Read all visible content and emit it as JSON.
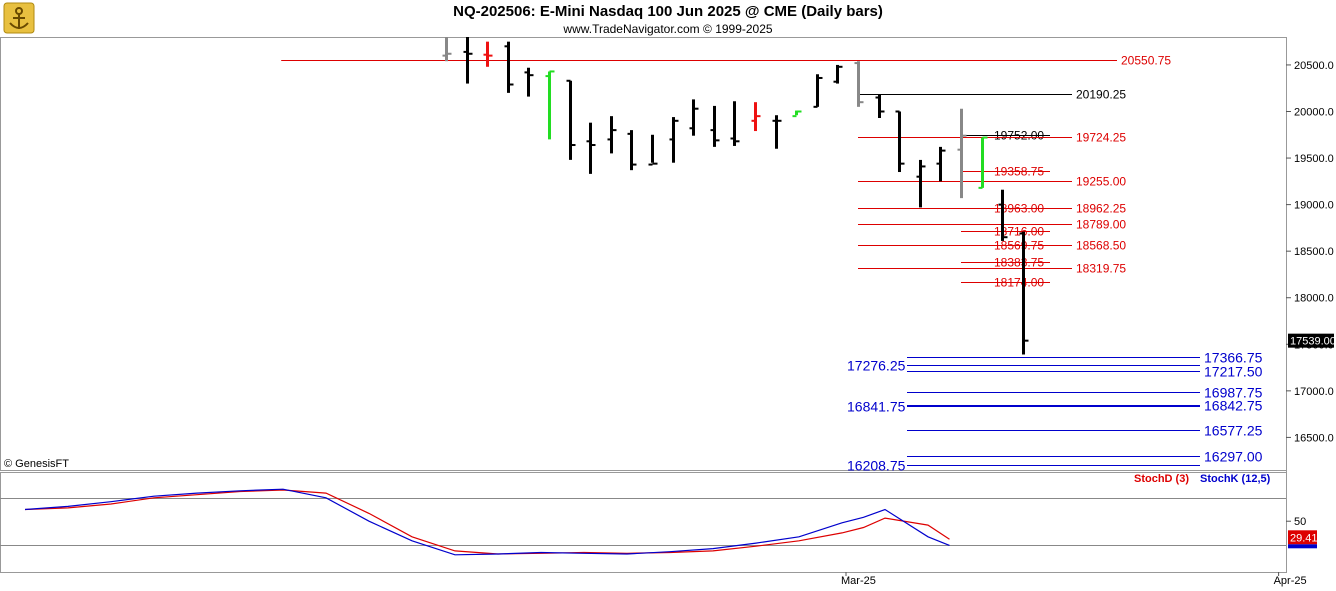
{
  "header": {
    "title": "NQ-202506:  E-Mini Nasdaq 100 Jun 2025 @ CME  (Daily bars)",
    "subtitle": "www.TradeNavigator.com © 1999-2025",
    "watermark": "© GenesisFT"
  },
  "colors": {
    "bar": "#000000",
    "up_bar": "#22dd22",
    "down_bar": "#ee1111",
    "gray_bar": "#888888",
    "resistance": "#dd0000",
    "support": "#0000cc",
    "stoch_d": "#dd0000",
    "stoch_k": "#0000cc"
  },
  "chart_data": [
    {
      "type": "ohlc",
      "title": "NQ-202506:  E-Mini Nasdaq 100 Jun 2025 @ CME  (Daily bars)",
      "ylim": [
        16150,
        20800
      ],
      "y_ticks": [
        "20500.0",
        "20000.0",
        "19500.0",
        "19000.0",
        "18500.0",
        "18000.0",
        "17500.0",
        "17000.0",
        "16500.0"
      ],
      "x_tick_labels": [
        {
          "label": "Mar-25",
          "bar_index": 20
        },
        {
          "label": "Apr-25",
          "bar_index": 41
        }
      ],
      "last_price": "17539.00",
      "bars": [
        {
          "o": 20600,
          "h": 20800,
          "l": 20540,
          "c": 20620,
          "color": "gray"
        },
        {
          "o": 20640,
          "h": 20800,
          "l": 20300,
          "c": 20620,
          "color": "black"
        },
        {
          "o": 20610,
          "h": 20750,
          "l": 20480,
          "c": 20600,
          "color": "red"
        },
        {
          "o": 20700,
          "h": 20750,
          "l": 20200,
          "c": 20290,
          "color": "black"
        },
        {
          "o": 20420,
          "h": 20470,
          "l": 20160,
          "c": 20390,
          "color": "black"
        },
        {
          "o": 20380,
          "h": 20430,
          "l": 19700,
          "c": 20430,
          "color": "green"
        },
        {
          "o": 20330,
          "h": 20330,
          "l": 19480,
          "c": 19640,
          "color": "black"
        },
        {
          "o": 19680,
          "h": 19880,
          "l": 19330,
          "c": 19640,
          "color": "black"
        },
        {
          "o": 19700,
          "h": 19950,
          "l": 19550,
          "c": 19800,
          "color": "black"
        },
        {
          "o": 19760,
          "h": 19800,
          "l": 19370,
          "c": 19430,
          "color": "black"
        },
        {
          "o": 19430,
          "h": 19750,
          "l": 19450,
          "c": 19440,
          "color": "black"
        },
        {
          "o": 19700,
          "h": 19940,
          "l": 19450,
          "c": 19900,
          "color": "black"
        },
        {
          "o": 19820,
          "h": 20130,
          "l": 19740,
          "c": 20030,
          "color": "black"
        },
        {
          "o": 19800,
          "h": 20060,
          "l": 19620,
          "c": 19690,
          "color": "black"
        },
        {
          "o": 19710,
          "h": 20110,
          "l": 19630,
          "c": 19680,
          "color": "black"
        },
        {
          "o": 19900,
          "h": 20100,
          "l": 19790,
          "c": 19950,
          "color": "red"
        },
        {
          "o": 19900,
          "h": 19960,
          "l": 19600,
          "c": 19900,
          "color": "black"
        },
        {
          "o": 19950,
          "h": 20010,
          "l": 19960,
          "c": 20000,
          "color": "green"
        },
        {
          "o": 20050,
          "h": 20400,
          "l": 20050,
          "c": 20360,
          "color": "black"
        },
        {
          "o": 20320,
          "h": 20500,
          "l": 20300,
          "c": 20480,
          "color": "black"
        },
        {
          "o": 20520,
          "h": 20540,
          "l": 20050,
          "c": 20100,
          "color": "gray"
        },
        {
          "o": 20150,
          "h": 20180,
          "l": 19930,
          "c": 20000,
          "color": "black"
        },
        {
          "o": 20000,
          "h": 20000,
          "l": 19350,
          "c": 19440,
          "color": "black"
        },
        {
          "o": 19300,
          "h": 19480,
          "l": 18970,
          "c": 19410,
          "color": "black"
        },
        {
          "o": 19440,
          "h": 19620,
          "l": 19250,
          "c": 19580,
          "color": "black"
        },
        {
          "o": 19590,
          "h": 20030,
          "l": 19070,
          "c": 19740,
          "color": "gray"
        },
        {
          "o": 19180,
          "h": 19720,
          "l": 19180,
          "c": 19720,
          "color": "green"
        },
        {
          "o": 19000,
          "h": 19160,
          "l": 18610,
          "c": 18650,
          "color": "black"
        },
        {
          "o": 18690,
          "h": 18710,
          "l": 17390,
          "c": 17539,
          "color": "black"
        }
      ],
      "resistance_levels": [
        {
          "price": 20550.75,
          "label": "20550.75",
          "color": "red",
          "label_side": "right",
          "x_start_bar": -8
        },
        {
          "price": 20190.25,
          "label": "20190.25",
          "color": "black",
          "label_side": "right",
          "x_start_bar": 20
        },
        {
          "price": 19752.0,
          "label": "19752.00",
          "color": "black",
          "label_side": "left",
          "x_start_bar": 25
        },
        {
          "price": 19724.25,
          "label": "19724.25",
          "color": "red",
          "label_side": "right",
          "x_start_bar": 20
        },
        {
          "price": 19358.75,
          "label": "19358.75",
          "color": "red",
          "label_side": "left",
          "x_start_bar": 25
        },
        {
          "price": 19255.0,
          "label": "19255.00",
          "color": "red",
          "label_side": "right",
          "x_start_bar": 20
        },
        {
          "price": 18963.0,
          "label": "18963.00",
          "color": "red",
          "label_side": "left",
          "x_start_bar": 25
        },
        {
          "price": 18962.25,
          "label": "18962.25",
          "color": "red",
          "label_side": "right",
          "x_start_bar": 20
        },
        {
          "price": 18789.0,
          "label": "18789.00",
          "color": "red",
          "label_side": "right",
          "x_start_bar": 20
        },
        {
          "price": 18716.0,
          "label": "18716.00",
          "color": "red",
          "label_side": "left",
          "x_start_bar": 25
        },
        {
          "price": 18569.75,
          "label": "18569.75",
          "color": "red",
          "label_side": "left",
          "x_start_bar": 25
        },
        {
          "price": 18568.5,
          "label": "18568.50",
          "color": "red",
          "label_side": "right",
          "x_start_bar": 20
        },
        {
          "price": 18383.75,
          "label": "18383.75",
          "color": "red",
          "label_side": "left",
          "x_start_bar": 25
        },
        {
          "price": 18319.75,
          "label": "18319.75",
          "color": "red",
          "label_side": "right",
          "x_start_bar": 20
        },
        {
          "price": 18174.0,
          "label": "18174.00",
          "color": "red",
          "label_side": "left",
          "x_start_bar": 25
        }
      ],
      "support_levels": [
        {
          "price": 17366.75,
          "label": "17366.75",
          "label_side": "right"
        },
        {
          "price": 17276.25,
          "label": "17276.25",
          "label_side": "left"
        },
        {
          "price": 17217.5,
          "label": "17217.50",
          "label_side": "right"
        },
        {
          "price": 16987.75,
          "label": "16987.75",
          "label_side": "right"
        },
        {
          "price": 16842.75,
          "label": "16842.75",
          "label_side": "right"
        },
        {
          "price": 16841.75,
          "label": "16841.75",
          "label_side": "left"
        },
        {
          "price": 16577.25,
          "label": "16577.25",
          "label_side": "right"
        },
        {
          "price": 16297.0,
          "label": "16297.00",
          "label_side": "right"
        },
        {
          "price": 16208.75,
          "label": "16208.75",
          "label_side": "left"
        }
      ]
    },
    {
      "type": "line",
      "ylim": [
        -15,
        113
      ],
      "y_ticks": [
        "50"
      ],
      "reference_lines": [
        80,
        20
      ],
      "last_value": "29.41",
      "series": [
        {
          "name": "StochD (3)",
          "color": "red",
          "x": [
            0,
            2,
            4,
            6,
            8,
            10,
            12,
            14,
            16,
            18,
            20,
            22,
            24,
            26,
            28,
            30,
            32,
            34,
            36,
            38,
            39,
            40,
            42,
            43
          ],
          "values": [
            65,
            67,
            72,
            80,
            84,
            88,
            90,
            86,
            60,
            30,
            12,
            8,
            9,
            10,
            9,
            10,
            12,
            18,
            25,
            35,
            42,
            54,
            45,
            27
          ]
        },
        {
          "name": "StochK (12,5)",
          "color": "blue",
          "x": [
            0,
            2,
            4,
            6,
            8,
            10,
            12,
            14,
            16,
            18,
            20,
            22,
            24,
            26,
            28,
            30,
            32,
            34,
            36,
            38,
            39,
            40,
            42,
            43
          ],
          "values": [
            65,
            69,
            75,
            82,
            86,
            89,
            91,
            80,
            50,
            25,
            7,
            8,
            10,
            9,
            8,
            11,
            15,
            22,
            30,
            48,
            55,
            65,
            30,
            19
          ]
        }
      ]
    }
  ]
}
